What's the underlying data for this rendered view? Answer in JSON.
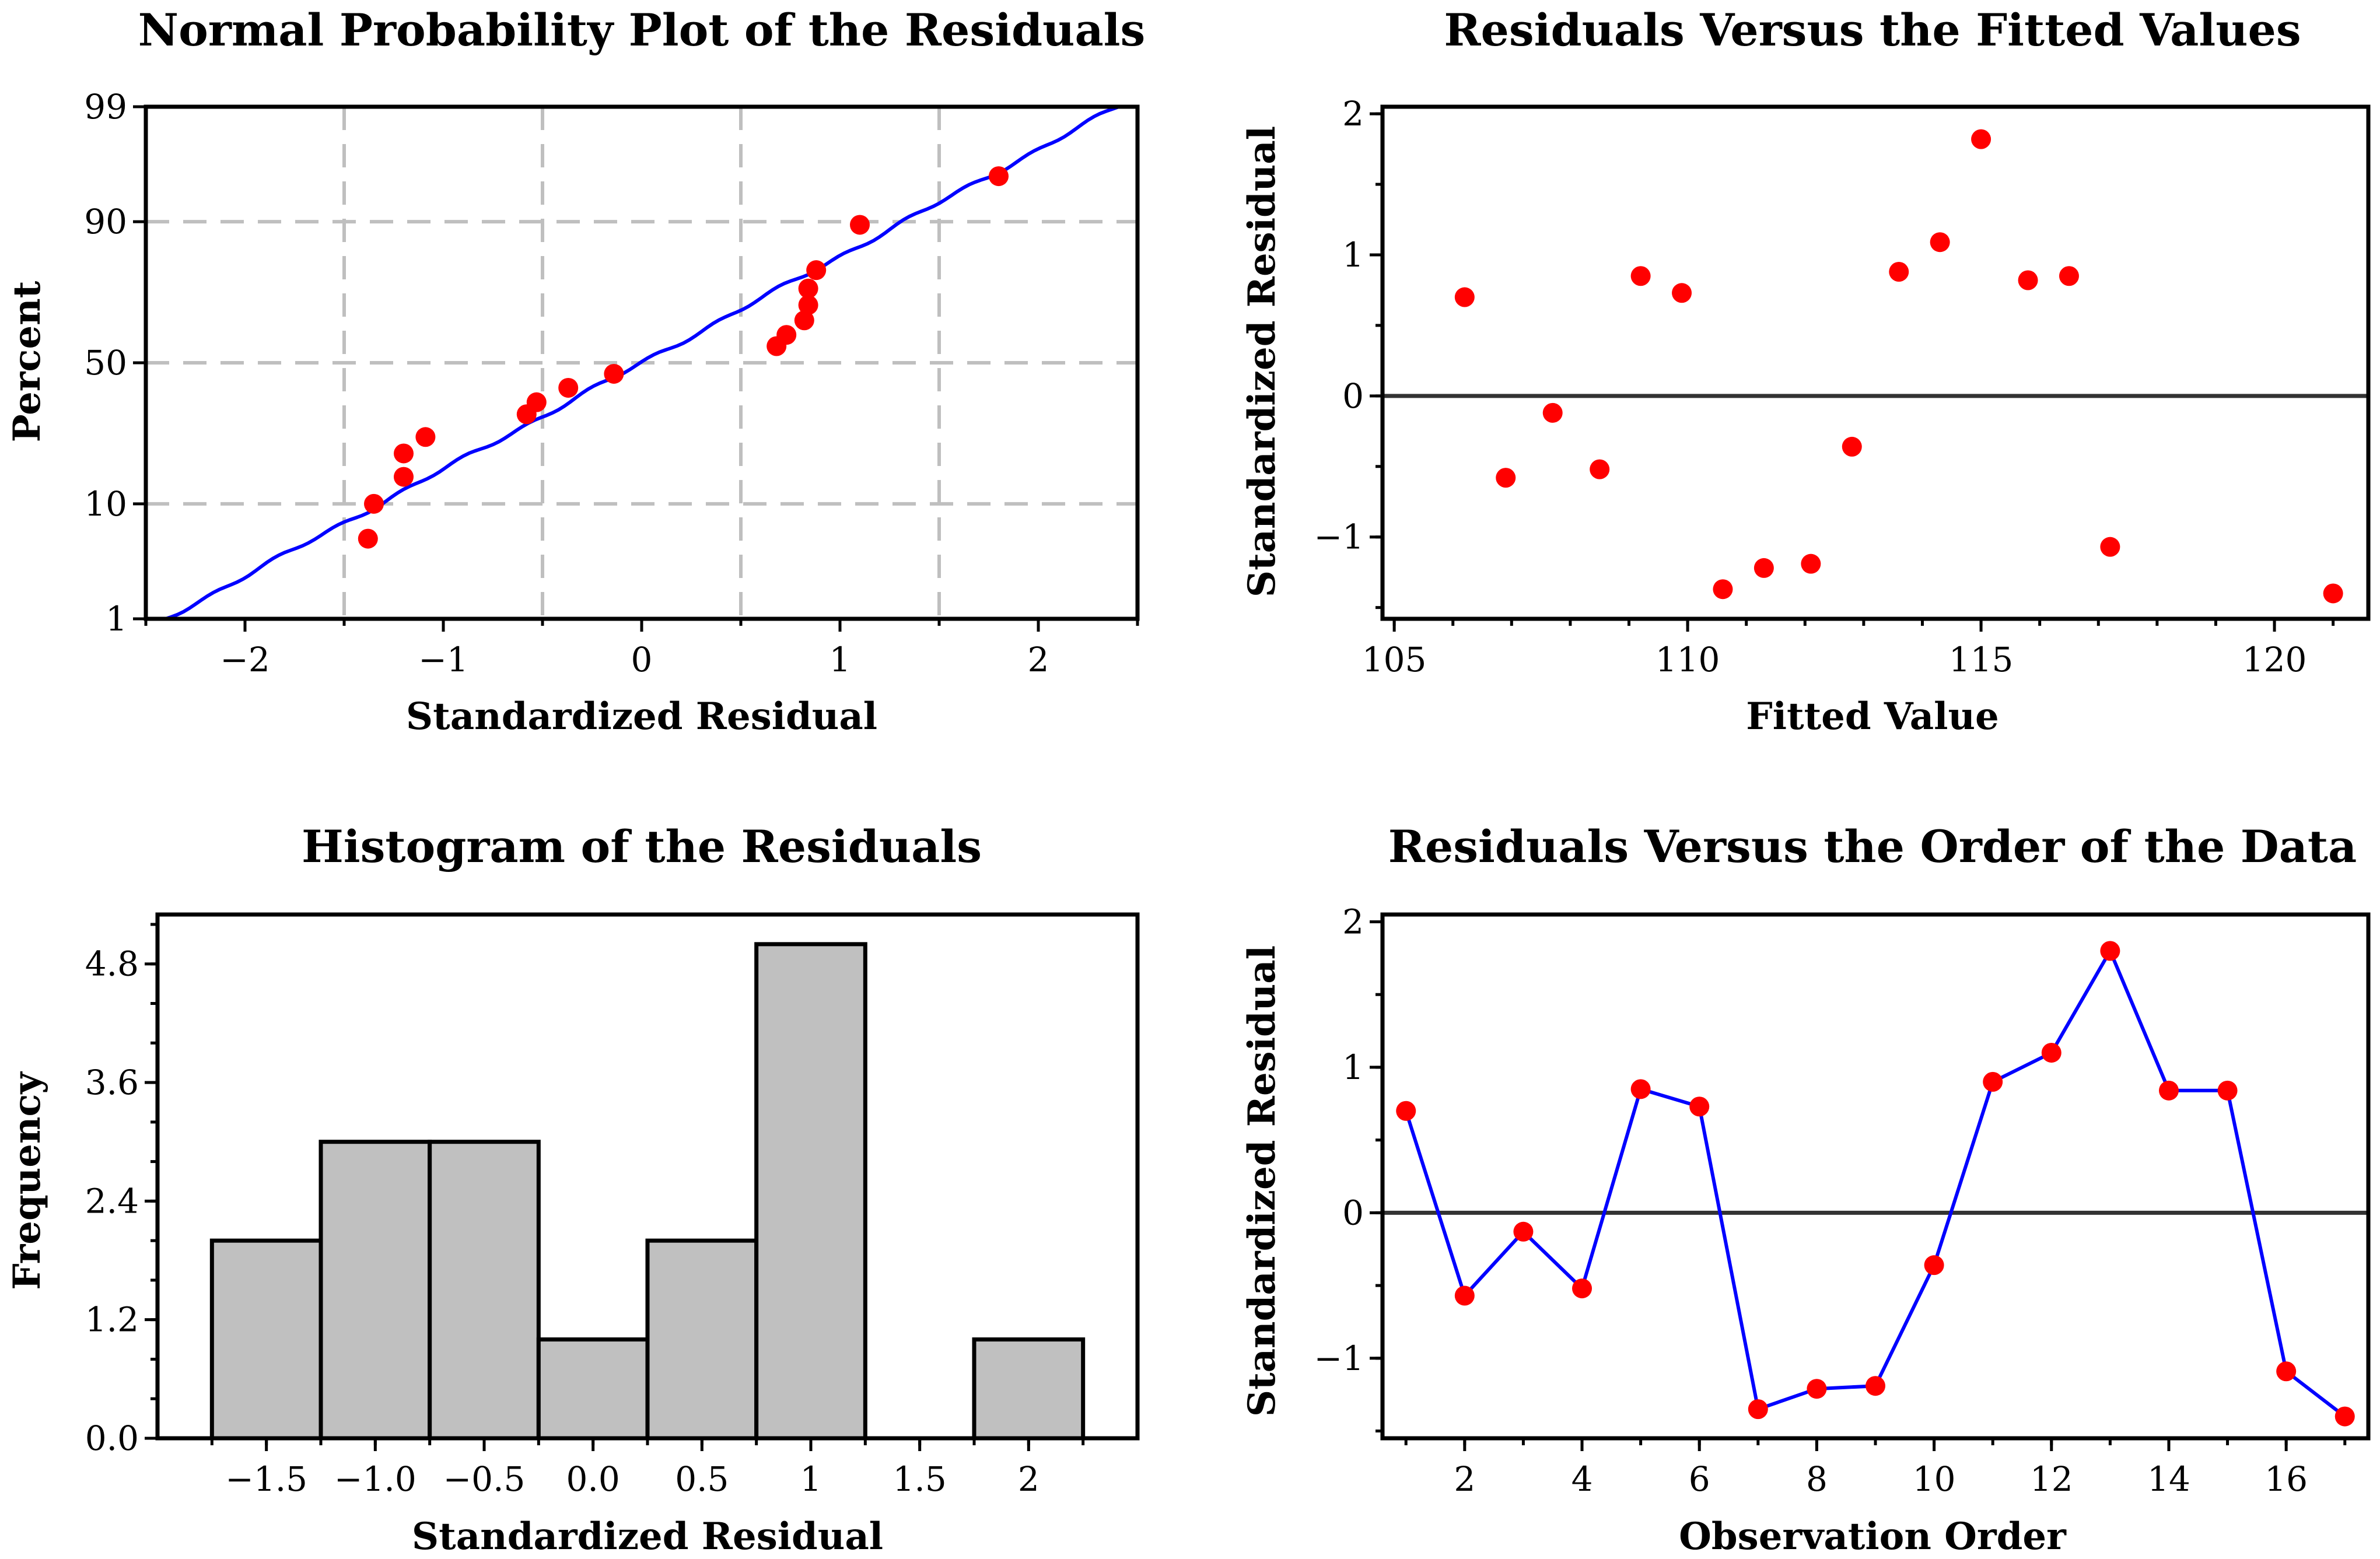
{
  "colors": {
    "point": "#ff0000",
    "line": "#0000ff",
    "bar_fill": "#c0c0c0",
    "grid": "#bfbfbf",
    "ref": "#333333"
  },
  "chart_data": [
    {
      "id": "normal",
      "type": "scatter",
      "title": "Normal Probability Plot of the Residuals",
      "xlabel": "Standardized Residual",
      "ylabel": "Percent",
      "xlim": [
        -2.5,
        2.5
      ],
      "xticks": [
        -2,
        -1,
        0,
        1,
        2
      ],
      "xtick_labels": [
        "−2",
        "−1",
        "0",
        "1",
        "2"
      ],
      "yticks": [
        1,
        10,
        50,
        90,
        99
      ],
      "ytick_labels": [
        "1",
        "10",
        "50",
        "90",
        "99"
      ],
      "ylim_percent": [
        1,
        99
      ],
      "y_scale": "normal-probability",
      "grid": true,
      "fit_line": {
        "x": [
          -2.4,
          2.4
        ],
        "y_percent": [
          1,
          99
        ]
      },
      "points": [
        {
          "x": -1.38,
          "y": 5.5
        },
        {
          "x": -1.35,
          "y": 10
        },
        {
          "x": -1.2,
          "y": 15
        },
        {
          "x": -1.2,
          "y": 20.5
        },
        {
          "x": -1.09,
          "y": 25
        },
        {
          "x": -0.58,
          "y": 32
        },
        {
          "x": -0.53,
          "y": 36
        },
        {
          "x": -0.37,
          "y": 41
        },
        {
          "x": -0.14,
          "y": 46
        },
        {
          "x": 0.68,
          "y": 56
        },
        {
          "x": 0.73,
          "y": 60
        },
        {
          "x": 0.82,
          "y": 65
        },
        {
          "x": 0.84,
          "y": 70
        },
        {
          "x": 0.84,
          "y": 75
        },
        {
          "x": 0.88,
          "y": 80
        },
        {
          "x": 1.1,
          "y": 89.5
        },
        {
          "x": 1.8,
          "y": 95.5
        }
      ]
    },
    {
      "id": "fitted",
      "type": "scatter",
      "title": "Residuals Versus the Fitted Values",
      "xlabel": "Fitted Value",
      "ylabel": "Standardized Residual",
      "xlim": [
        104.8,
        121.6
      ],
      "ylim": [
        -1.58,
        2.05
      ],
      "xticks": [
        105,
        110,
        115,
        120
      ],
      "xtick_labels": [
        "105",
        "110",
        "115",
        "120"
      ],
      "yticks": [
        -1,
        0,
        1,
        2
      ],
      "ytick_labels": [
        "−1",
        "0",
        "1",
        "2"
      ],
      "reference_line_y": 0,
      "points": [
        {
          "x": 106.2,
          "y": 0.7
        },
        {
          "x": 106.9,
          "y": -0.58
        },
        {
          "x": 107.7,
          "y": -0.12
        },
        {
          "x": 108.5,
          "y": -0.52
        },
        {
          "x": 109.2,
          "y": 0.85
        },
        {
          "x": 109.9,
          "y": 0.73
        },
        {
          "x": 110.6,
          "y": -1.37
        },
        {
          "x": 111.3,
          "y": -1.22
        },
        {
          "x": 112.1,
          "y": -1.19
        },
        {
          "x": 112.8,
          "y": -0.36
        },
        {
          "x": 113.6,
          "y": 0.88
        },
        {
          "x": 114.3,
          "y": 1.09
        },
        {
          "x": 115.0,
          "y": 1.82
        },
        {
          "x": 115.8,
          "y": 0.82
        },
        {
          "x": 116.5,
          "y": 0.85
        },
        {
          "x": 117.2,
          "y": -1.07
        },
        {
          "x": 121.0,
          "y": -1.4
        }
      ]
    },
    {
      "id": "histogram",
      "type": "bar",
      "title": "Histogram of the Residuals",
      "xlabel": "Standardized Residual",
      "ylabel": "Frequency",
      "xlim": [
        -2.0,
        2.5
      ],
      "ylim": [
        0,
        5.3
      ],
      "xticks": [
        -1.5,
        -1.0,
        -0.5,
        0.0,
        0.5,
        1,
        1.5,
        2
      ],
      "xtick_labels": [
        "−1.5",
        "−1.0",
        "−0.5",
        "0.0",
        "0.5",
        "1",
        "1.5",
        "2"
      ],
      "yticks": [
        0,
        1.2,
        2.4,
        3.6,
        4.8
      ],
      "ytick_labels": [
        "0.0",
        "1.2",
        "2.4",
        "3.6",
        "4.8"
      ],
      "bin_width": 0.5,
      "bins": [
        {
          "center": -1.5,
          "value": 2
        },
        {
          "center": -1.0,
          "value": 3
        },
        {
          "center": -0.5,
          "value": 3
        },
        {
          "center": 0.0,
          "value": 1
        },
        {
          "center": 0.5,
          "value": 2
        },
        {
          "center": 1.0,
          "value": 5
        },
        {
          "center": 1.5,
          "value": 0
        },
        {
          "center": 2.0,
          "value": 1
        }
      ]
    },
    {
      "id": "order",
      "type": "line",
      "title": "Residuals Versus the Order of the Data",
      "xlabel": "Observation Order",
      "ylabel": "Standardized Residual",
      "xlim": [
        0.6,
        17.4
      ],
      "ylim": [
        -1.55,
        2.05
      ],
      "xticks": [
        2,
        4,
        6,
        8,
        10,
        12,
        14,
        16
      ],
      "xtick_labels": [
        "2",
        "4",
        "6",
        "8",
        "10",
        "12",
        "14",
        "16"
      ],
      "yticks": [
        -1,
        0,
        1,
        2
      ],
      "ytick_labels": [
        "−1",
        "0",
        "1",
        "2"
      ],
      "reference_line_y": 0,
      "x": [
        1,
        2,
        3,
        4,
        5,
        6,
        7,
        8,
        9,
        10,
        11,
        12,
        13,
        14,
        15,
        16,
        17
      ],
      "y": [
        0.7,
        -0.57,
        -0.13,
        -0.52,
        0.85,
        0.73,
        -1.35,
        -1.21,
        -1.19,
        -0.36,
        0.9,
        1.1,
        1.8,
        0.84,
        0.84,
        -1.09,
        -1.4
      ]
    }
  ]
}
